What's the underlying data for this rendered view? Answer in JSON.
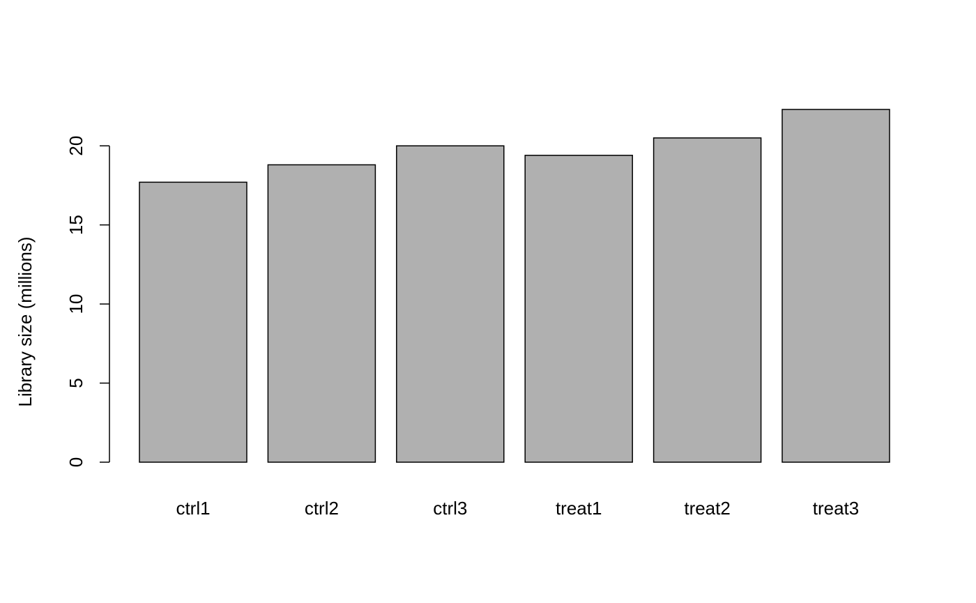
{
  "chart_data": {
    "type": "bar",
    "categories": [
      "ctrl1",
      "ctrl2",
      "ctrl3",
      "treat1",
      "treat2",
      "treat3"
    ],
    "values": [
      17.7,
      18.8,
      20.0,
      19.4,
      20.5,
      22.3
    ],
    "title": "",
    "xlabel": "",
    "ylabel": "Library size (millions)",
    "ylim": [
      0,
      22.3
    ],
    "yticks": [
      0,
      5,
      10,
      15,
      20
    ],
    "grid": false,
    "bar_color": "#b0b0b0",
    "edge_color": "#000000"
  }
}
